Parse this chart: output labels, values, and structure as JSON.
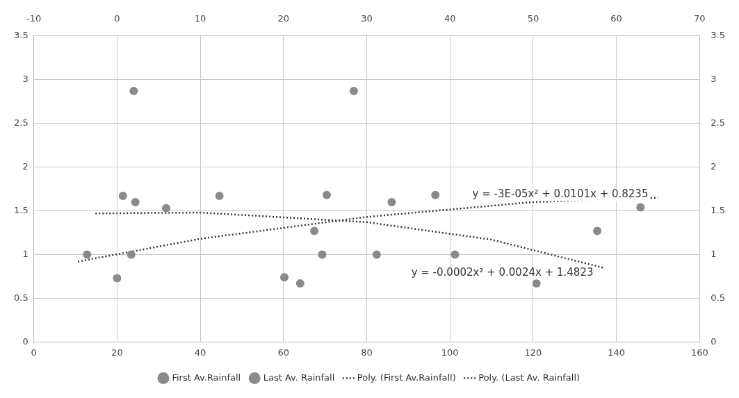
{
  "chart_data": {
    "type": "scatter",
    "xlim": [
      0,
      160
    ],
    "xticks": [
      0,
      20,
      40,
      60,
      80,
      100,
      120,
      140,
      160
    ],
    "x2lim": [
      -10,
      70
    ],
    "x2ticks": [
      -10,
      0,
      10,
      20,
      30,
      40,
      50,
      60,
      70
    ],
    "ylim": [
      0,
      3.5
    ],
    "yticks": [
      0,
      0.5,
      1,
      1.5,
      2,
      2.5,
      3,
      3.5
    ],
    "y2lim": [
      0,
      3.5
    ],
    "y2ticks": [
      0,
      0.5,
      1,
      1.5,
      2,
      2.5,
      3,
      3.5
    ],
    "grid": true,
    "legend": "bottom",
    "marker": "circle",
    "series": [
      {
        "name": "First Av.Rainfall",
        "color": "#8a8a8a",
        "x": [
          12.8,
          20,
          21.4,
          24,
          44.6,
          60.2,
          69.3,
          76.9,
          96.5,
          120.8,
          145.8
        ],
        "values": [
          1,
          0.73,
          1.67,
          2.87,
          1.67,
          0.74,
          1,
          2.87,
          1.68,
          0.67,
          1.54
        ]
      },
      {
        "name": "Last Av. Rainfall",
        "color": "#8a8a8a",
        "axis": "x2",
        "x": [
          2.2,
          1.7,
          5.9,
          22,
          23.7,
          25.2,
          31.2,
          33,
          40.6,
          57.7
        ],
        "values": [
          1.6,
          1,
          1.53,
          0.67,
          1.27,
          1.68,
          1,
          1.6,
          1,
          1.27
        ]
      },
      {
        "name": "Poly. (First Av.Rainfall)",
        "type": "line",
        "line_style": "dotted",
        "marker": "none",
        "color": "#333333",
        "x": [
          10.6,
          40,
          80,
          120,
          150
        ],
        "values": [
          0.92,
          1.18,
          1.43,
          1.6,
          1.65
        ]
      },
      {
        "name": "Poly. (Last Av. Rainfall)",
        "type": "line",
        "axis": "x2",
        "line_style": "dotted",
        "marker": "none",
        "color": "#333333",
        "x": [
          -2.6,
          10,
          30,
          45,
          58.4
        ],
        "values": [
          1.47,
          1.48,
          1.37,
          1.17,
          0.85
        ]
      }
    ],
    "annotations": [
      "y = -3E-05x² + 0.0101x + 0.8235",
      "y = -0.0002x² + 0.0024x + 1.4823"
    ]
  }
}
